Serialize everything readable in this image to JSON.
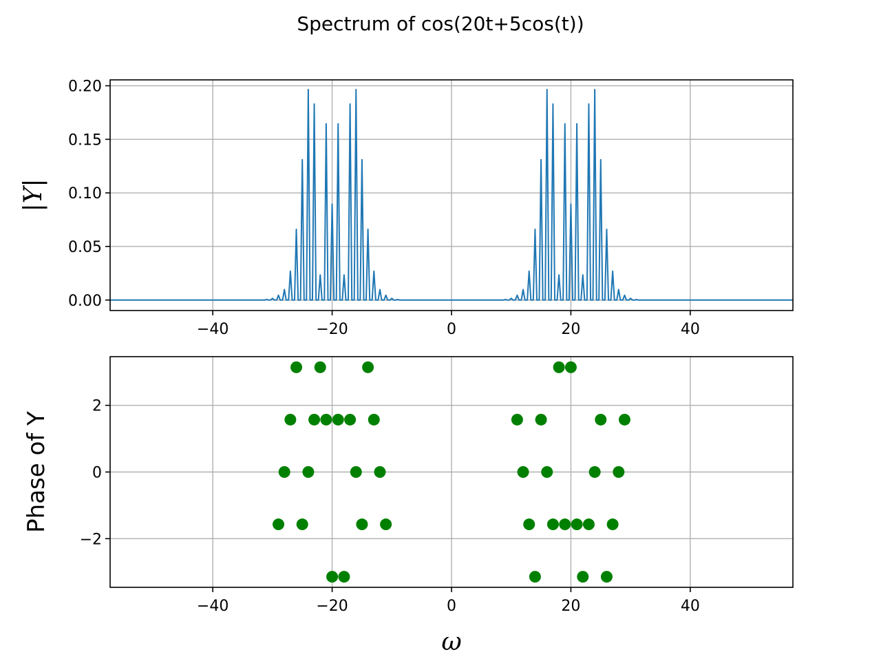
{
  "figure": {
    "title": "Spectrum of cos(20t+5cos(t))"
  },
  "chart_data": [
    {
      "type": "line",
      "ylabel": "|Y|",
      "xlabel": "",
      "xlim": [
        -57.2,
        57.2
      ],
      "ylim": [
        -0.0098,
        0.2055
      ],
      "x_ticks": [
        -40,
        -20,
        0,
        20,
        40
      ],
      "x_tick_labels": [
        "−40",
        "−20",
        "0",
        "20",
        "40"
      ],
      "y_ticks": [
        0.0,
        0.05,
        0.1,
        0.15,
        0.2
      ],
      "y_tick_labels": [
        "0.00",
        "0.05",
        "0.10",
        "0.15",
        "0.20"
      ],
      "grid": true,
      "color": "#1f77b4",
      "peaks": {
        "x": [
          -31,
          -30,
          -29,
          -28,
          -27,
          -26,
          -25,
          -24,
          -23,
          -22,
          -21,
          -20,
          -19,
          -18,
          -17,
          -16,
          -15,
          -14,
          -13,
          -12,
          -11,
          -10,
          -9,
          9,
          10,
          11,
          12,
          13,
          14,
          15,
          16,
          17,
          18,
          19,
          20,
          21,
          22,
          23,
          24,
          25,
          26,
          27,
          28,
          29,
          30,
          31
        ],
        "y": [
          0.0005,
          0.0016,
          0.0045,
          0.0098,
          0.027,
          0.066,
          0.131,
          0.1965,
          0.183,
          0.0235,
          0.1645,
          0.0895,
          0.1645,
          0.0235,
          0.183,
          0.1965,
          0.131,
          0.066,
          0.027,
          0.0098,
          0.0045,
          0.0016,
          0.0005,
          0.0005,
          0.0016,
          0.0045,
          0.0098,
          0.027,
          0.066,
          0.131,
          0.1965,
          0.183,
          0.0235,
          0.1645,
          0.0895,
          0.1645,
          0.0235,
          0.183,
          0.1965,
          0.131,
          0.066,
          0.027,
          0.0098,
          0.0045,
          0.0016,
          0.0005
        ]
      }
    },
    {
      "type": "scatter",
      "ylabel": "Phase of Y",
      "xlabel": "ω",
      "xlim": [
        -57.2,
        57.2
      ],
      "ylim": [
        -3.46,
        3.46
      ],
      "x_ticks": [
        -40,
        -20,
        0,
        20,
        40
      ],
      "x_tick_labels": [
        "−40",
        "−20",
        "0",
        "20",
        "40"
      ],
      "y_ticks": [
        -2,
        0,
        2
      ],
      "y_tick_labels": [
        "−2",
        "0",
        "2"
      ],
      "grid": true,
      "color": "#008000",
      "points": {
        "x": [
          -26,
          -22,
          -14,
          18,
          20,
          -27,
          -23,
          -21,
          -19,
          -17,
          -13,
          11,
          15,
          25,
          29,
          -28,
          -24,
          -16,
          -12,
          12,
          16,
          24,
          28,
          -29,
          -25,
          -15,
          -11,
          13,
          17,
          19,
          21,
          23,
          27,
          -20,
          -18,
          14,
          22,
          26
        ],
        "y": [
          3.1416,
          3.1416,
          3.1416,
          3.1416,
          3.1416,
          1.5708,
          1.5708,
          1.5708,
          1.5708,
          1.5708,
          1.5708,
          1.5708,
          1.5708,
          1.5708,
          1.5708,
          0,
          0,
          0,
          0,
          0,
          0,
          0,
          0,
          -1.5708,
          -1.5708,
          -1.5708,
          -1.5708,
          -1.5708,
          -1.5708,
          -1.5708,
          -1.5708,
          -1.5708,
          -1.5708,
          -3.1416,
          -3.1416,
          -3.1416,
          -3.1416,
          -3.1416
        ]
      }
    }
  ]
}
